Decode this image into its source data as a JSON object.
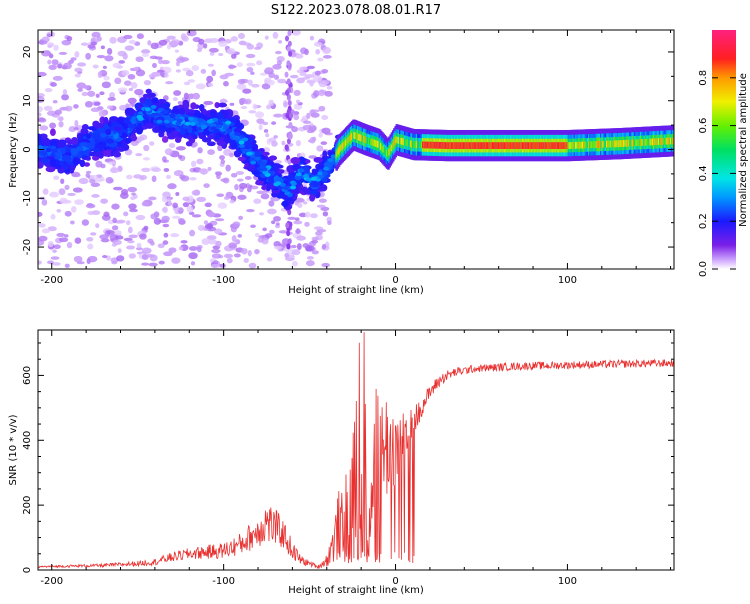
{
  "title": "S122.2023.078.08.01.R17",
  "chart_data": [
    {
      "type": "heatmap",
      "title": "S122.2023.078.08.01.R17",
      "xlabel": "Height of straight line (km)",
      "ylabel": "Frequency (Hz)",
      "xlim": [
        -208,
        162
      ],
      "ylim": [
        -24.5,
        24.5
      ],
      "x_ticks": [
        -200,
        -100,
        0,
        100
      ],
      "x_tick_labels": [
        "-200",
        "-100",
        "0",
        "100"
      ],
      "y_ticks": [
        -20,
        -10,
        0,
        10,
        20
      ],
      "y_tick_labels": [
        "-20",
        "-10",
        "0",
        "10",
        "20"
      ],
      "colorbar": {
        "label": "Normalized spectral amplitude",
        "range": [
          0,
          1
        ],
        "ticks": [
          0.0,
          0.2,
          0.4,
          0.6,
          0.8
        ],
        "tick_labels": [
          "0.0",
          "0.2",
          "0.4",
          "0.6",
          "0.8"
        ],
        "colormap": "rainbow (white-violet-blue-cyan-green-yellow-red-magenta)"
      },
      "ridge": {
        "x": [
          -205,
          -190,
          -175,
          -160,
          -145,
          -130,
          -115,
          -100,
          -90,
          -80,
          -70,
          -62,
          -55,
          -48,
          -40,
          -33,
          -25,
          -18,
          -10,
          -5,
          0,
          10,
          30,
          60,
          100,
          130,
          162
        ],
        "y": [
          0,
          -2,
          2,
          3,
          8,
          6,
          5,
          5,
          2,
          -3,
          -6,
          -9,
          -4,
          -7,
          -4,
          0,
          3,
          2,
          1,
          -1,
          2,
          1,
          0.8,
          0.8,
          0.8,
          1.2,
          1.8
        ]
      }
    },
    {
      "type": "line",
      "xlabel": "Height of straight line (km)",
      "ylabel": "SNR (10 * v/v)",
      "xlim": [
        -208,
        162
      ],
      "ylim": [
        0,
        740
      ],
      "x_ticks": [
        -200,
        -100,
        0,
        100
      ],
      "x_tick_labels": [
        "-200",
        "-100",
        "0",
        "100"
      ],
      "y_ticks": [
        0,
        200,
        400,
        600
      ],
      "y_tick_labels": [
        "0",
        "200",
        "400",
        "600"
      ],
      "line_color": "#e8302f",
      "series": [
        {
          "x": [
            -208,
            -190,
            -170,
            -150,
            -140,
            -130,
            -120,
            -110,
            -100,
            -90,
            -80,
            -75,
            -70,
            -65,
            -60,
            -55,
            -50,
            -45,
            -40,
            -35,
            -30,
            -27,
            -24,
            -21,
            -18,
            -15,
            -12,
            -9,
            -6,
            -3,
            0,
            3,
            6,
            9,
            12,
            15,
            18,
            21,
            24,
            27,
            30,
            35,
            40,
            45,
            50,
            60,
            70,
            80,
            90,
            100,
            110,
            120,
            130,
            140,
            150,
            162
          ],
          "y": [
            10,
            12,
            14,
            20,
            25,
            40,
            50,
            55,
            60,
            80,
            120,
            150,
            130,
            110,
            60,
            30,
            20,
            10,
            30,
            100,
            200,
            260,
            280,
            300,
            320,
            330,
            340,
            360,
            380,
            390,
            380,
            400,
            420,
            450,
            470,
            500,
            530,
            555,
            575,
            590,
            600,
            610,
            615,
            620,
            622,
            625,
            628,
            630,
            630,
            632,
            633,
            634,
            635,
            636,
            637,
            638
          ],
          "noise": [
            3,
            4,
            5,
            8,
            10,
            15,
            18,
            22,
            25,
            35,
            50,
            70,
            60,
            45,
            30,
            15,
            8,
            6,
            20,
            80,
            160,
            220,
            260,
            300,
            320,
            280,
            240,
            200,
            180,
            150,
            120,
            100,
            80,
            60,
            45,
            30,
            25,
            22,
            20,
            18,
            16,
            14,
            13,
            12,
            12,
            12,
            12,
            12,
            12,
            12,
            12,
            12,
            12,
            12,
            12,
            12
          ]
        }
      ]
    }
  ]
}
